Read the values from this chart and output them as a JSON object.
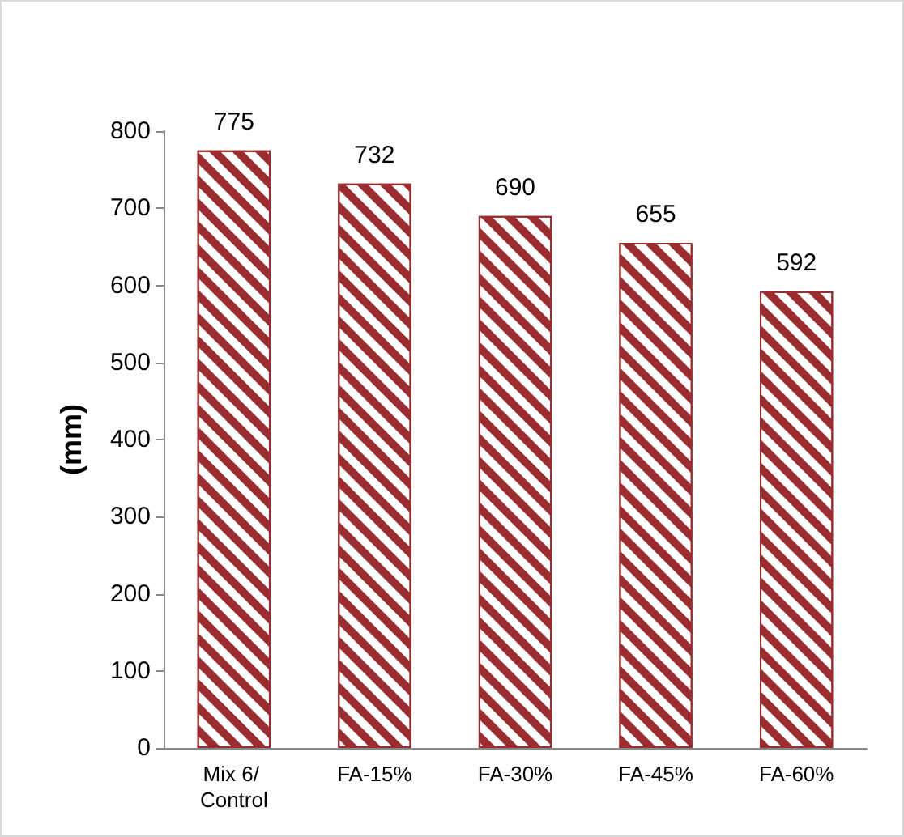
{
  "chart_data": {
    "type": "bar",
    "ylabel": "(mm)",
    "categories": [
      "Mix 6/ Control",
      "FA-15%",
      "FA-30%",
      "FA-45%",
      "FA-60%"
    ],
    "values": [
      775,
      732,
      690,
      655,
      592
    ],
    "color": "#9b2d30",
    "ylim": [
      0,
      800
    ],
    "yticks": [
      0,
      100,
      200,
      300,
      400,
      500,
      600,
      700,
      800
    ],
    "grid": false,
    "data_labels": true
  }
}
